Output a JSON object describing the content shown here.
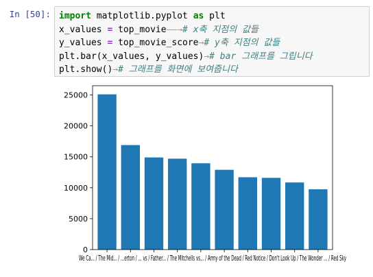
{
  "cell": {
    "prompt": "In [50]:",
    "code": [
      [
        {
          "t": "kw",
          "v": "import"
        },
        {
          "t": "",
          "v": " matplotlib.pyplot "
        },
        {
          "t": "kw",
          "v": "as"
        },
        {
          "t": "",
          "v": " plt"
        }
      ],
      [
        {
          "t": "",
          "v": "x_values "
        },
        {
          "t": "op",
          "v": "="
        },
        {
          "t": "",
          "v": " top_movie"
        },
        {
          "t": "tab",
          "v": "——→"
        },
        {
          "t": "cm",
          "v": "# x축 지점의 값들"
        }
      ],
      [
        {
          "t": "",
          "v": "y_values "
        },
        {
          "t": "op",
          "v": "="
        },
        {
          "t": "",
          "v": " top_movie_score"
        },
        {
          "t": "tab",
          "v": "→"
        },
        {
          "t": "cm",
          "v": "# y축 지점의 값들"
        }
      ],
      [
        {
          "t": "",
          "v": "plt.bar(x_values, y_values)"
        },
        {
          "t": "tab",
          "v": "→"
        },
        {
          "t": "cm",
          "v": "# bar 그래프를 그립니다"
        }
      ],
      [
        {
          "t": "",
          "v": "plt.show()"
        },
        {
          "t": "tab",
          "v": "→"
        },
        {
          "t": "cm",
          "v": "# 그래프를 화면에 보여줍니다"
        }
      ]
    ]
  },
  "colors": {
    "bar": "#1f77b4",
    "prompt": "#303f9f"
  },
  "chart_data": {
    "type": "bar",
    "categories": [
      "We Can Be Heroes",
      "The Midnight Sky",
      "Bridgerton",
      "Fatherhood",
      "The Mitchells vs The Machines",
      "Army of the Dead",
      "Red Notice",
      "Don't Look Up",
      "The Wonder",
      "Red Sky"
    ],
    "x_tick_labels_visible": "We Ca... / The Mid... / ...erton / ... vs / Father... / The Mitchells vs... / Army of the Dead / Red Notice / Don't Look Up / The Wonder ... / Red Sky",
    "values": [
      25100,
      16900,
      14900,
      14700,
      13950,
      12900,
      11700,
      11600,
      10850,
      9750
    ],
    "yticks": [
      0,
      5000,
      10000,
      15000,
      20000,
      25000
    ],
    "ylim": [
      0,
      26500
    ],
    "title": "",
    "xlabel": "",
    "ylabel": ""
  }
}
